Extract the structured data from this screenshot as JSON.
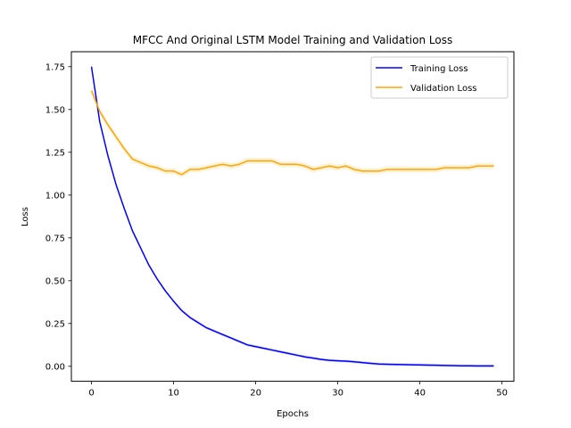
{
  "chart_data": {
    "type": "line",
    "title": "MFCC And Original LSTM Model Training and Validation Loss",
    "xlabel": "Epochs",
    "ylabel": "Loss",
    "xlim": [
      -2.45,
      51.45
    ],
    "ylim": [
      -0.0875,
      1.8375
    ],
    "xticks": [
      0,
      10,
      20,
      30,
      40,
      50
    ],
    "xtick_labels": [
      "0",
      "10",
      "20",
      "30",
      "40",
      "50"
    ],
    "yticks": [
      0.0,
      0.25,
      0.5,
      0.75,
      1.0,
      1.25,
      1.5,
      1.75
    ],
    "ytick_labels": [
      "0.00",
      "0.25",
      "0.50",
      "0.75",
      "1.00",
      "1.25",
      "1.50",
      "1.75"
    ],
    "grid": false,
    "legend_position": "top-right",
    "x": [
      0,
      1,
      2,
      3,
      4,
      5,
      6,
      7,
      8,
      9,
      10,
      11,
      12,
      13,
      14,
      15,
      16,
      17,
      18,
      19,
      20,
      21,
      22,
      23,
      24,
      25,
      26,
      27,
      28,
      29,
      30,
      31,
      32,
      33,
      34,
      35,
      36,
      37,
      38,
      39,
      40,
      41,
      42,
      43,
      44,
      45,
      46,
      47,
      48,
      49
    ],
    "series": [
      {
        "name": "Training Loss",
        "color": "#0000ff",
        "values": [
          1.75,
          1.43,
          1.23,
          1.06,
          0.92,
          0.79,
          0.69,
          0.59,
          0.51,
          0.44,
          0.38,
          0.325,
          0.285,
          0.255,
          0.225,
          0.205,
          0.185,
          0.165,
          0.145,
          0.125,
          0.115,
          0.105,
          0.095,
          0.085,
          0.075,
          0.065,
          0.055,
          0.048,
          0.04,
          0.035,
          0.032,
          0.03,
          0.026,
          0.022,
          0.017,
          0.013,
          0.012,
          0.011,
          0.01,
          0.009,
          0.008,
          0.007,
          0.006,
          0.005,
          0.004,
          0.003,
          0.003,
          0.002,
          0.002,
          0.002
        ]
      },
      {
        "name": "Validation Loss",
        "color": "#ffa500",
        "values": [
          1.61,
          1.49,
          1.41,
          1.34,
          1.27,
          1.21,
          1.19,
          1.17,
          1.16,
          1.14,
          1.14,
          1.12,
          1.15,
          1.15,
          1.16,
          1.17,
          1.18,
          1.17,
          1.18,
          1.2,
          1.2,
          1.2,
          1.2,
          1.18,
          1.18,
          1.18,
          1.17,
          1.15,
          1.16,
          1.17,
          1.16,
          1.17,
          1.15,
          1.14,
          1.14,
          1.14,
          1.15,
          1.15,
          1.15,
          1.15,
          1.15,
          1.15,
          1.15,
          1.16,
          1.16,
          1.16,
          1.16,
          1.17,
          1.17,
          1.17
        ]
      }
    ]
  }
}
